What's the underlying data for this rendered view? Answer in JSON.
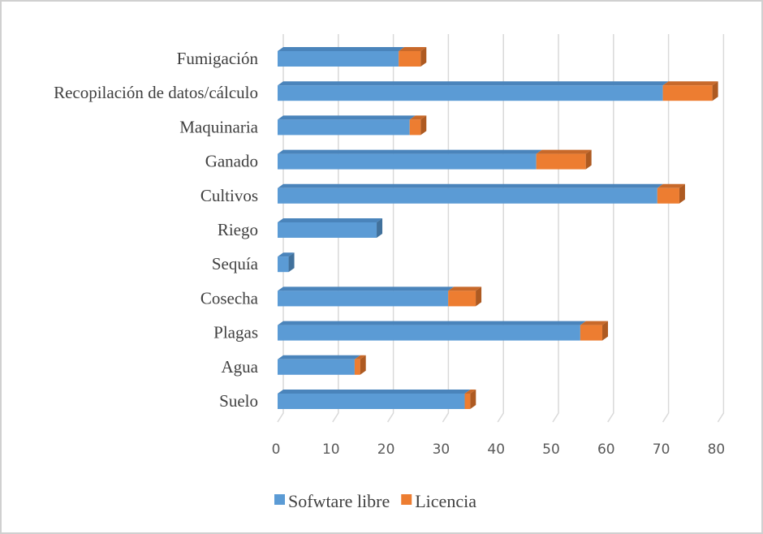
{
  "chart_data": {
    "type": "bar",
    "orientation": "horizontal",
    "stacked": true,
    "style": "3d",
    "title": "",
    "xlabel": "",
    "ylabel": "",
    "categories": [
      "Fumigación",
      "Recopilación de datos/cálculo",
      "Maquinaria",
      "Ganado",
      "Cultivos",
      "Riego",
      "Sequía",
      "Cosecha",
      "Plagas",
      "Agua",
      "Suelo"
    ],
    "series": [
      {
        "name": "Sofwtare libre",
        "color": "#5b9bd5",
        "values": [
          22,
          70,
          24,
          47,
          69,
          18,
          2,
          31,
          55,
          14,
          34
        ]
      },
      {
        "name": "Licencia",
        "color": "#ed7d31",
        "values": [
          4,
          9,
          2,
          9,
          4,
          0,
          0,
          5,
          4,
          1,
          1
        ]
      }
    ],
    "xlim": [
      0,
      80
    ],
    "xticks": [
      "0",
      "10",
      "20",
      "30",
      "40",
      "50",
      "60",
      "70",
      "80"
    ],
    "grid": true,
    "legend": "bottom"
  }
}
